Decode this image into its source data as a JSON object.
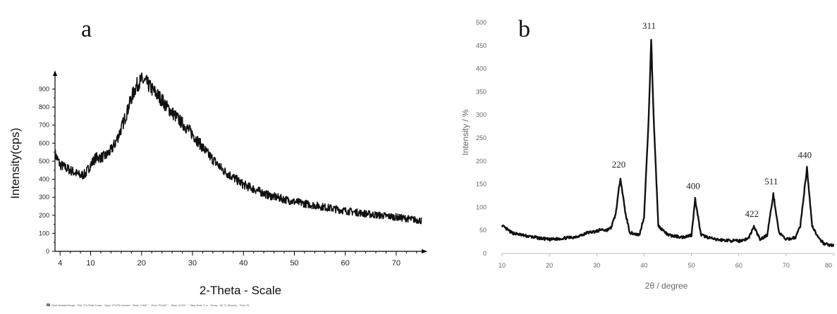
{
  "chart_data": [
    {
      "panel": "a",
      "type": "line",
      "ylabel": "Intensity(cps)",
      "xlabel": "2-Theta - Scale",
      "xlim": [
        3,
        75
      ],
      "ylim": [
        0,
        980
      ],
      "y_ticks": [
        0,
        100,
        200,
        300,
        400,
        500,
        600,
        700,
        800,
        900
      ],
      "x_ticks": [
        4,
        10,
        20,
        30,
        40,
        50,
        60,
        70
      ],
      "x": [
        3,
        4,
        6,
        8,
        9,
        10,
        11,
        12,
        13,
        14,
        15,
        16,
        17,
        18,
        19,
        20,
        21,
        22,
        23,
        24,
        25,
        27,
        30,
        33,
        36,
        40,
        45,
        50,
        55,
        60,
        65,
        70,
        75
      ],
      "y": [
        540,
        480,
        450,
        420,
        430,
        480,
        520,
        520,
        530,
        560,
        610,
        680,
        760,
        850,
        920,
        950,
        935,
        900,
        870,
        840,
        800,
        740,
        650,
        540,
        450,
        370,
        310,
        275,
        250,
        225,
        205,
        190,
        170
      ],
      "footer": "Sieb Muster/Haupt - File: S1.RAW 0.raw - Type: 2Th/Th locked - Start: 4.000 ° - End: 75.000 ° - Step: 0.020 ° - Step time: 1. s - Temp.: 25 °C (Room) - Time St"
    },
    {
      "panel": "b",
      "type": "line",
      "ylabel": "Intensity / %",
      "xlabel": "2θ / degree",
      "xlim": [
        10,
        80
      ],
      "ylim": [
        0,
        500
      ],
      "y_ticks": [
        0,
        50,
        100,
        150,
        200,
        250,
        300,
        350,
        400,
        450,
        500
      ],
      "x_ticks": [
        10,
        20,
        30,
        40,
        50,
        60,
        70,
        80
      ],
      "x": [
        10,
        12,
        15,
        18,
        20,
        22,
        25,
        27,
        28,
        30,
        31,
        32,
        33,
        34,
        35,
        36,
        37,
        39,
        40,
        41,
        41.5,
        42,
        43,
        45,
        48,
        50,
        50.8,
        52,
        55,
        58,
        60,
        62,
        63.2,
        64.5,
        66,
        67.3,
        68.5,
        70,
        72,
        73,
        74.4,
        75.5,
        77,
        78,
        79,
        80
      ],
      "y": [
        60,
        45,
        38,
        33,
        30,
        32,
        35,
        40,
        45,
        48,
        52,
        50,
        55,
        85,
        165,
        90,
        45,
        40,
        80,
        300,
        465,
        300,
        60,
        40,
        35,
        40,
        118,
        40,
        30,
        28,
        27,
        32,
        58,
        30,
        40,
        128,
        45,
        30,
        35,
        60,
        185,
        60,
        30,
        22,
        18,
        18
      ],
      "peaks": [
        {
          "label": "220",
          "x": 35.1,
          "y": 165
        },
        {
          "label": "311",
          "x": 41.5,
          "y": 465
        },
        {
          "label": "400",
          "x": 50.8,
          "y": 118
        },
        {
          "label": "422",
          "x": 63.2,
          "y": 58
        },
        {
          "label": "511",
          "x": 67.3,
          "y": 128
        },
        {
          "label": "440",
          "x": 74.4,
          "y": 185
        }
      ]
    }
  ]
}
